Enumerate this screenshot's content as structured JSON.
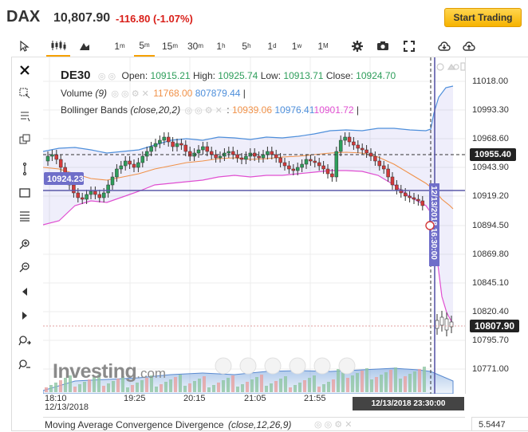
{
  "header": {
    "symbol": "DAX",
    "price": "10,807.90",
    "change": "-116.80 (-1.07%)",
    "start_trading": "Start Trading"
  },
  "toolbar": {
    "intervals": [
      {
        "num": "1",
        "unit": "m"
      },
      {
        "num": "5",
        "unit": "m"
      },
      {
        "num": "15",
        "unit": "m"
      },
      {
        "num": "30",
        "unit": "m"
      },
      {
        "num": "1",
        "unit": "h"
      },
      {
        "num": "5",
        "unit": "h"
      },
      {
        "num": "1",
        "unit": "d"
      },
      {
        "num": "1",
        "unit": "w"
      },
      {
        "num": "1",
        "unit": "M"
      }
    ],
    "active_interval": "5m"
  },
  "legend": {
    "instrument": "DE30",
    "open_label": "Open:",
    "open": "10915.21",
    "high_label": "High:",
    "high": "10925.74",
    "low_label": "Low:",
    "low": "10913.71",
    "close_label": "Close:",
    "close": "10924.70",
    "volume_label": "Volume",
    "volume_param": "(9)",
    "volume_v1": "11768.00",
    "volume_v2": "807879.44",
    "bb_label": "Bollinger Bands",
    "bb_param": "(close,20,2)",
    "bb_v1": "10939.06",
    "bb_v2": "10976.41",
    "bb_v3": "10901.72"
  },
  "y_axis": {
    "ticks": [
      "11018.00",
      "10993.30",
      "10968.60",
      "10943.90",
      "10919.20",
      "10894.50",
      "10869.80",
      "10845.10",
      "10820.40",
      "10795.70",
      "10771.00"
    ],
    "crosshair_value": "10955.40",
    "last_price": "10807.90",
    "left_marker": "10924.23"
  },
  "x_axis": {
    "ticks": [
      "18:10",
      "19:25",
      "20:15",
      "21:05",
      "21:55"
    ],
    "date": "12/13/2018",
    "crosshair_label": "12/13/2018 23:30:00",
    "vertical_label": "12/13/2018 16:30:00"
  },
  "watermark": {
    "brand": "Investing",
    "suffix": ".com"
  },
  "bottom_panel": {
    "title": "Moving Average Convergence Divergence",
    "param": "(close,12,26,9)",
    "value": "5.5447"
  },
  "colors": {
    "up": "#2e9e5b",
    "down": "#d43a3a",
    "bb_upper": "#4e8fdb",
    "bb_mid": "#f0924a",
    "bb_lower": "#e04fd1",
    "accent": "#f6a100"
  }
}
